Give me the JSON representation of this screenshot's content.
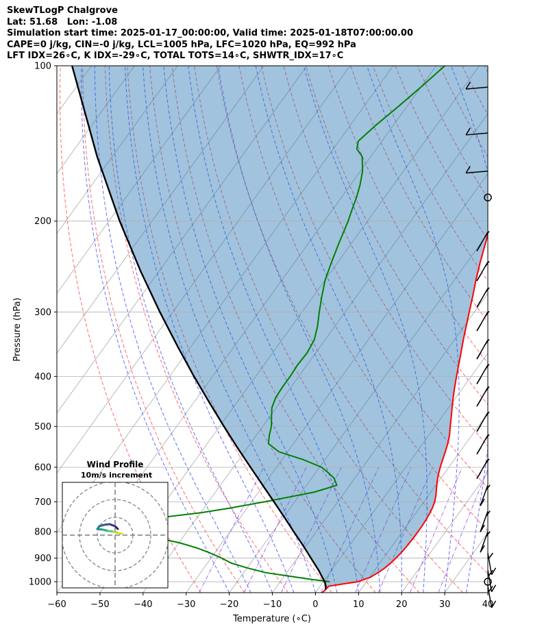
{
  "header": {
    "line1": "SkewTLogP Chalgrove",
    "line2": "Lat: 51.68   Lon: -1.08",
    "line3": "Simulation start time: 2025-01-17_00:00:00, Valid time: 2025-01-18T07:00:00.00",
    "line4": "CAPE=0 j/kg, CIN=-0 j/kg, LCL=1005 hPa, LFC=1020 hPa, EQ=992 hPa",
    "line5": "LFT IDX=26∘C, K IDX=-29∘C, TOTAL TOTS=14∘C, SHWTR_IDX=17∘C"
  },
  "chart_data": {
    "type": "skew-t log-p",
    "xlabel": "Temperature (∘C)",
    "ylabel": "Pressure (hPa)",
    "xlim": [
      -60,
      40
    ],
    "ylim": [
      1050,
      100
    ],
    "y_scale": "log",
    "xticks": [
      "−60",
      "−50",
      "−40",
      "−30",
      "−20",
      "−10",
      "0",
      "10",
      "20",
      "30",
      "40"
    ],
    "yticks": [
      "100",
      "200",
      "300",
      "400",
      "500",
      "600",
      "700",
      "800",
      "900",
      "1000"
    ],
    "grid": true,
    "temperature_profile": {
      "color": "#ff0000",
      "points": [
        [
          1050,
          1.5
        ],
        [
          1040,
          1.8
        ],
        [
          1020,
          2.0
        ],
        [
          1000,
          8.0
        ],
        [
          980,
          10.2
        ],
        [
          960,
          11.2
        ],
        [
          940,
          12.0
        ],
        [
          920,
          12.5
        ],
        [
          900,
          12.9
        ],
        [
          880,
          13.2
        ],
        [
          860,
          13.4
        ],
        [
          840,
          13.5
        ],
        [
          820,
          13.6
        ],
        [
          800,
          13.6
        ],
        [
          780,
          13.6
        ],
        [
          760,
          13.5
        ],
        [
          740,
          13.3
        ],
        [
          720,
          13.0
        ],
        [
          700,
          12.5
        ],
        [
          680,
          11.7
        ],
        [
          660,
          10.7
        ],
        [
          640,
          9.7
        ],
        [
          620,
          8.8
        ],
        [
          600,
          8.0
        ],
        [
          580,
          7.3
        ],
        [
          560,
          6.6
        ],
        [
          540,
          5.8
        ],
        [
          520,
          4.8
        ],
        [
          500,
          3.5
        ],
        [
          480,
          2.2
        ],
        [
          460,
          0.8
        ],
        [
          440,
          -0.6
        ],
        [
          420,
          -2.0
        ],
        [
          400,
          -3.4
        ],
        [
          380,
          -4.8
        ],
        [
          360,
          -6.3
        ],
        [
          340,
          -7.9
        ],
        [
          320,
          -9.5
        ],
        [
          300,
          -11.2
        ],
        [
          280,
          -13.0
        ],
        [
          260,
          -15.0
        ],
        [
          240,
          -17.0
        ],
        [
          220,
          -19.0
        ],
        [
          200,
          -21.2
        ],
        [
          190,
          -22.5
        ],
        [
          180,
          -24.0
        ],
        [
          170,
          -26.0
        ],
        [
          160,
          -28.7
        ],
        [
          150,
          -30.5
        ],
        [
          140,
          -31.2
        ],
        [
          130,
          -32.0
        ],
        [
          120,
          -34.0
        ],
        [
          115,
          -35.5
        ],
        [
          110,
          -37.5
        ],
        [
          105,
          -40.0
        ],
        [
          100,
          -42.2
        ]
      ]
    },
    "dewpoint_profile": {
      "color": "#008000",
      "points": [
        [
          1000,
          1.5
        ],
        [
          990,
          -3.0
        ],
        [
          975,
          -9.0
        ],
        [
          960,
          -15.0
        ],
        [
          940,
          -20.0
        ],
        [
          920,
          -24.5
        ],
        [
          900,
          -27.5
        ],
        [
          880,
          -31.0
        ],
        [
          860,
          -35.0
        ],
        [
          840,
          -40.0
        ],
        [
          820,
          -47.0
        ],
        [
          800,
          -55.0
        ],
        [
          785,
          -62.0
        ],
        [
          770,
          -57.0
        ],
        [
          750,
          -48.0
        ],
        [
          735,
          -40.0
        ],
        [
          720,
          -34.0
        ],
        [
          700,
          -27.0
        ],
        [
          685,
          -22.0
        ],
        [
          670,
          -17.0
        ],
        [
          650,
          -13.0
        ],
        [
          630,
          -14.8
        ],
        [
          615,
          -17.0
        ],
        [
          600,
          -19.5
        ],
        [
          580,
          -25.0
        ],
        [
          560,
          -32.0
        ],
        [
          540,
          -35.8
        ],
        [
          520,
          -37.0
        ],
        [
          500,
          -38.0
        ],
        [
          480,
          -39.5
        ],
        [
          460,
          -41.0
        ],
        [
          440,
          -41.8
        ],
        [
          420,
          -42.0
        ],
        [
          400,
          -42.0
        ],
        [
          380,
          -42.2
        ],
        [
          360,
          -42.0
        ],
        [
          340,
          -42.5
        ],
        [
          320,
          -44.0
        ],
        [
          300,
          -46.0
        ],
        [
          280,
          -48.0
        ],
        [
          260,
          -50.0
        ],
        [
          240,
          -51.5
        ],
        [
          220,
          -53.0
        ],
        [
          200,
          -54.5
        ],
        [
          190,
          -55.5
        ],
        [
          180,
          -56.5
        ],
        [
          170,
          -57.8
        ],
        [
          160,
          -59.5
        ],
        [
          150,
          -62.0
        ],
        [
          145,
          -64.5
        ],
        [
          140,
          -65.5
        ],
        [
          130,
          -64.0
        ],
        [
          120,
          -62.0
        ],
        [
          110,
          -60.0
        ],
        [
          100,
          -58.0
        ]
      ]
    },
    "parcel_profile": {
      "color": "#000000",
      "points": [
        [
          1035,
          1.8
        ],
        [
          1020,
          1.3
        ],
        [
          1005,
          0.6
        ],
        [
          1000,
          0.3
        ],
        [
          950,
          -3.0
        ],
        [
          900,
          -6.8
        ],
        [
          850,
          -10.8
        ],
        [
          800,
          -15.2
        ],
        [
          750,
          -19.8
        ],
        [
          700,
          -24.8
        ],
        [
          650,
          -30.2
        ],
        [
          600,
          -36.0
        ],
        [
          550,
          -42.3
        ],
        [
          500,
          -49.0
        ],
        [
          450,
          -56.3
        ],
        [
          400,
          -64.3
        ],
        [
          350,
          -73.1
        ],
        [
          300,
          -83.0
        ],
        [
          250,
          -94.3
        ],
        [
          200,
          -107.5
        ],
        [
          150,
          -123.5
        ],
        [
          100,
          -144.5
        ]
      ]
    },
    "shaded_region": "between parcel and temperature profiles (CAPE/CIN area)",
    "reference_lines": {
      "isotherms": "grey solid, skewed",
      "dry_adiabats": "red dashed",
      "moist_adiabats": "blue dashed",
      "mixing_ratio": "purple dash-dot"
    },
    "wind_barbs": {
      "pressures_hPa": [
        110,
        135,
        160,
        180,
        210,
        240,
        270,
        300,
        340,
        380,
        420,
        470,
        520,
        580,
        650,
        730,
        800,
        880,
        950,
        1000,
        1020
      ],
      "calm_at": [
        180,
        1000
      ]
    },
    "hodograph": {
      "title": "Wind Profile",
      "subtitle": "10m/s increment",
      "rings_ms": [
        10,
        20,
        30
      ]
    }
  }
}
